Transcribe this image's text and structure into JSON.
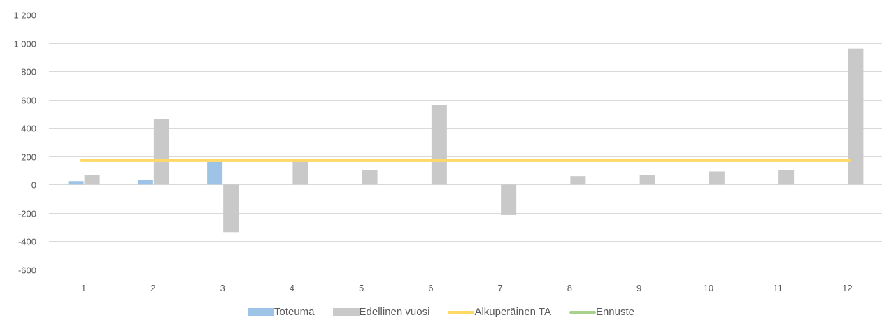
{
  "chart_data": {
    "type": "bar",
    "categories": [
      "1",
      "2",
      "3",
      "4",
      "5",
      "6",
      "7",
      "8",
      "9",
      "10",
      "11",
      "12"
    ],
    "ylim": [
      -600,
      1200
    ],
    "yticks": [
      -600,
      -400,
      -200,
      0,
      200,
      400,
      600,
      800,
      1000,
      1200
    ],
    "ytick_labels": [
      "-600",
      "-400",
      "-200",
      "0",
      "200",
      "400",
      "600",
      "800",
      "1 000",
      "1 200"
    ],
    "grid": true,
    "legend_position": "bottom",
    "series": [
      {
        "name": "Toteuma",
        "kind": "bar",
        "color": "#9DC3E6",
        "values": [
          25,
          35,
          160,
          null,
          null,
          null,
          null,
          null,
          null,
          null,
          null,
          null
        ]
      },
      {
        "name": "Edellinen vuosi",
        "kind": "bar",
        "color": "#C9C9C9",
        "values": [
          70,
          462,
          -335,
          165,
          105,
          562,
          -215,
          60,
          68,
          93,
          105,
          960
        ]
      },
      {
        "name": "Alkuperäinen TA",
        "kind": "line",
        "color": "#FFD966",
        "values": [
          170,
          170,
          170,
          170,
          170,
          170,
          170,
          170,
          170,
          170,
          170,
          170
        ]
      },
      {
        "name": "Ennuste",
        "kind": "line",
        "color": "#A9D18E",
        "values": [
          null,
          null,
          null,
          null,
          null,
          null,
          null,
          null,
          null,
          null,
          null,
          null
        ]
      }
    ]
  }
}
